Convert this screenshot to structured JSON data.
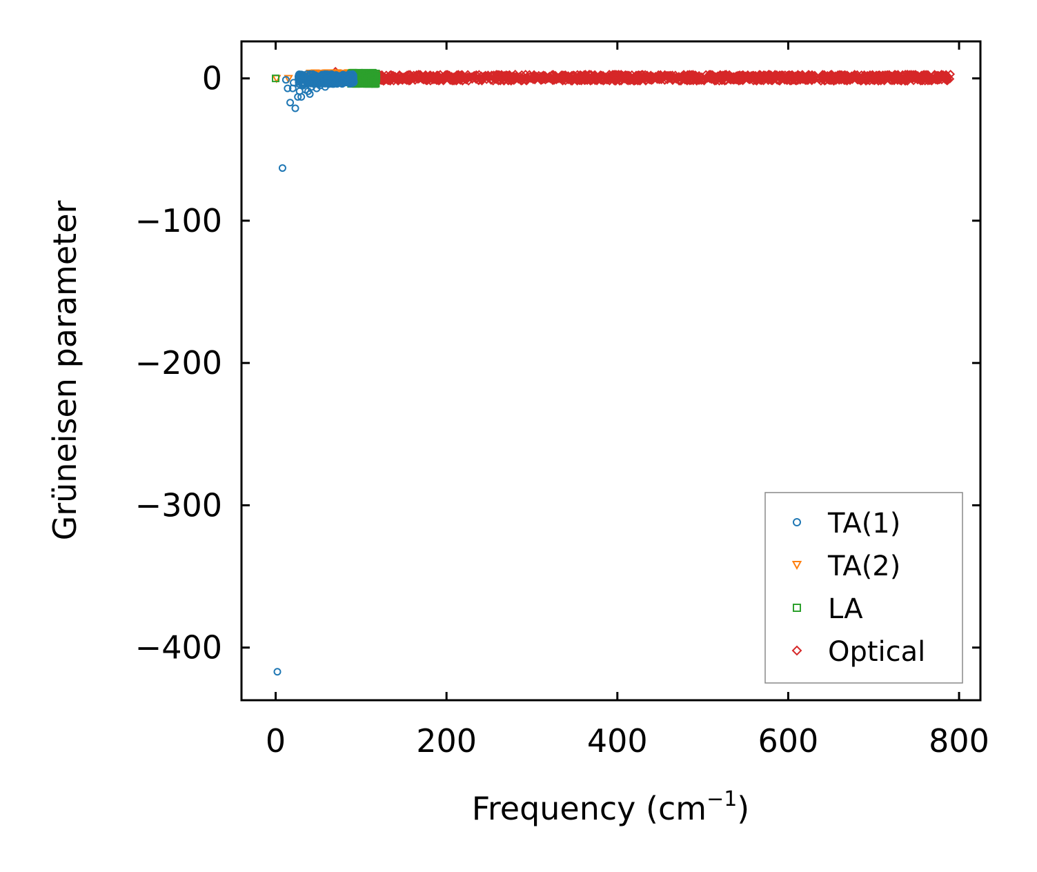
{
  "chart_data": {
    "type": "scatter",
    "title": "",
    "xlabel_main": "Frequency (cm",
    "xlabel_sup": "−1",
    "xlabel_end": ")",
    "ylabel": "Grüneisen parameter",
    "xlim": [
      -40,
      825
    ],
    "ylim": [
      -437,
      26
    ],
    "xticks": [
      0,
      200,
      400,
      600,
      800
    ],
    "yticks": [
      0,
      -100,
      -200,
      -300,
      -400
    ],
    "xtick_labels": [
      "0",
      "200",
      "400",
      "600",
      "800"
    ],
    "ytick_labels": [
      "0",
      "−100",
      "−200",
      "−300",
      "−400"
    ],
    "legend": {
      "position": "lower-right"
    },
    "series": [
      {
        "name": "TA(1)",
        "marker": "circle",
        "color": "#1f77b4",
        "points": [
          [
            2,
            -417
          ],
          [
            8,
            -63
          ],
          [
            12,
            -1
          ],
          [
            14,
            -7
          ],
          [
            17,
            -17
          ],
          [
            20,
            -7
          ],
          [
            21,
            -3
          ],
          [
            23,
            -21
          ],
          [
            26,
            -13
          ],
          [
            28,
            -9
          ],
          [
            30,
            -13
          ],
          [
            32,
            -5
          ],
          [
            35,
            -8
          ],
          [
            38,
            -9
          ],
          [
            40,
            -11
          ],
          [
            42,
            -6
          ],
          [
            45,
            -4
          ],
          [
            48,
            -7
          ],
          [
            52,
            -5
          ],
          [
            55,
            -3
          ],
          [
            58,
            -6
          ],
          [
            62,
            -4
          ],
          [
            66,
            -2
          ],
          [
            70,
            -3
          ],
          [
            74,
            -1
          ],
          [
            78,
            -2
          ],
          [
            82,
            1
          ],
          [
            86,
            2
          ],
          [
            90,
            3
          ]
        ],
        "dense_band": {
          "x": [
            26,
            92
          ],
          "y": [
            -4,
            3
          ]
        }
      },
      {
        "name": "TA(2)",
        "marker": "triangle-down",
        "color": "#ff7f0e",
        "points": [
          [
            1,
            0
          ],
          [
            15,
            0
          ],
          [
            30,
            1
          ],
          [
            45,
            1
          ],
          [
            60,
            2
          ],
          [
            72,
            4
          ],
          [
            80,
            3
          ],
          [
            90,
            1
          ],
          [
            100,
            0
          ]
        ],
        "dense_band": {
          "x": [
            40,
            100
          ],
          "y": [
            -2,
            4
          ]
        }
      },
      {
        "name": "LA",
        "marker": "square",
        "color": "#2ca02c",
        "points": [
          [
            0,
            0
          ],
          [
            55,
            -1
          ],
          [
            85,
            1
          ],
          [
            100,
            0
          ],
          [
            105,
            1
          ],
          [
            110,
            2
          ],
          [
            115,
            3
          ]
        ],
        "dense_band": {
          "x": [
            88,
            118
          ],
          "y": [
            -4,
            4
          ]
        }
      },
      {
        "name": "Optical",
        "marker": "diamond",
        "color": "#d62728",
        "points": [
          [
            70,
            5
          ],
          [
            460,
            1
          ],
          [
            690,
            0
          ],
          [
            785,
            0
          ]
        ],
        "dense_band": {
          "x": [
            65,
            790
          ],
          "y": [
            -2,
            3
          ]
        }
      }
    ]
  }
}
